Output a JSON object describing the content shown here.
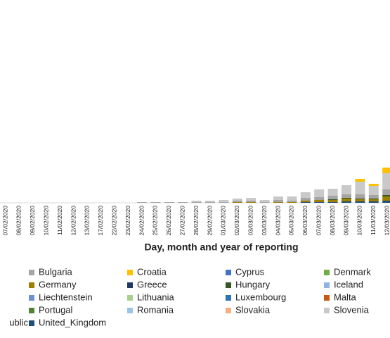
{
  "chart_data": {
    "type": "stacked_bar",
    "x_label": "Day, month and year of reporting",
    "categories": [
      "07/02/2020",
      "08/02/2020",
      "09/02/2020",
      "10/02/2020",
      "11/02/2020",
      "12/02/2020",
      "13/02/2020",
      "17/02/2020",
      "22/02/2020",
      "23/02/2020",
      "24/02/2020",
      "25/02/2020",
      "26/02/2020",
      "27/02/2020",
      "28/02/2020",
      "29/02/2020",
      "01/03/2020",
      "02/03/2020",
      "03/03/2020",
      "03/03/2020",
      "04/03/2020",
      "05/03/2020",
      "06/03/2020",
      "07/03/2020",
      "08/03/2020",
      "09/03/2020",
      "10/03/2020",
      "11/03/2020",
      "12/03/2020"
    ],
    "ylim": [
      0,
      288
    ],
    "series": [
      {
        "name": "Bulgaria",
        "color": "#a5a5a5",
        "values": [
          0,
          0,
          0,
          0,
          0,
          0,
          0,
          0,
          0,
          0,
          1,
          1,
          1,
          1,
          1,
          1,
          1,
          2,
          2,
          1,
          3,
          2,
          4,
          4,
          5,
          5,
          6,
          5,
          8
        ]
      },
      {
        "name": "Croatia",
        "color": "#ffc000",
        "values": [
          0,
          0,
          0,
          0,
          0,
          0,
          0,
          0,
          0,
          0,
          0,
          0,
          0,
          0,
          0,
          0,
          0,
          0,
          0,
          0,
          0,
          0,
          0,
          0,
          0,
          0,
          4,
          3,
          8
        ]
      },
      {
        "name": "Cyprus",
        "color": "#4472c4",
        "values": [
          0,
          0,
          0,
          0,
          0,
          0,
          0,
          0,
          0,
          0,
          0,
          0,
          0,
          0,
          0,
          0,
          0,
          0,
          0,
          0,
          0,
          0,
          0,
          0,
          0,
          0,
          0,
          0,
          0
        ]
      },
      {
        "name": "Denmark",
        "color": "#70ad47",
        "values": [
          0,
          0,
          0,
          0,
          0,
          0,
          0,
          0,
          0,
          0,
          0,
          0,
          0,
          0,
          0,
          0,
          0,
          0,
          0,
          0,
          0,
          0,
          0,
          0,
          0,
          0,
          0,
          0,
          0
        ]
      },
      {
        "name": "Germany",
        "color": "#9e7f00",
        "values": [
          0,
          0,
          0,
          0,
          0,
          0,
          0,
          0,
          0,
          0,
          0,
          0,
          0,
          0,
          0,
          0,
          0,
          1,
          1,
          0,
          1,
          1,
          2,
          3,
          3,
          4,
          3,
          3,
          6
        ]
      },
      {
        "name": "Greece",
        "color": "#203864",
        "values": [
          0,
          0,
          0,
          0,
          0,
          0,
          0,
          0,
          0,
          0,
          0,
          0,
          0,
          0,
          0,
          0,
          0,
          0,
          0,
          0,
          0,
          0,
          0,
          0,
          0,
          0,
          0,
          0,
          0
        ]
      },
      {
        "name": "Hungary",
        "color": "#375623",
        "values": [
          0,
          0,
          0,
          0,
          0,
          0,
          0,
          0,
          0,
          0,
          0,
          0,
          0,
          0,
          0,
          0,
          0,
          0,
          0,
          0,
          0,
          0,
          0,
          0,
          1,
          1,
          1,
          1,
          2
        ]
      },
      {
        "name": "Iceland",
        "color": "#8fb4e3",
        "values": [
          0,
          0,
          0,
          0,
          0,
          0,
          0,
          0,
          0,
          0,
          0,
          0,
          0,
          0,
          0,
          0,
          0,
          0,
          0,
          0,
          0,
          0,
          0,
          0,
          0,
          0,
          0,
          0,
          0
        ]
      },
      {
        "name": "Liechtenstein",
        "color": "#6f8fd4",
        "values": [
          0,
          0,
          0,
          0,
          0,
          0,
          0,
          0,
          0,
          0,
          0,
          0,
          0,
          0,
          0,
          0,
          0,
          0,
          0,
          0,
          0,
          0,
          0,
          0,
          0,
          0,
          0,
          0,
          0
        ]
      },
      {
        "name": "Lithuania",
        "color": "#a9d18e",
        "values": [
          0,
          0,
          0,
          0,
          0,
          0,
          0,
          0,
          0,
          0,
          0,
          0,
          0,
          0,
          0,
          0,
          0,
          0,
          0,
          0,
          0,
          0,
          0,
          0,
          0,
          0,
          0,
          0,
          0
        ]
      },
      {
        "name": "Luxembourg",
        "color": "#2e75b6",
        "values": [
          0,
          0,
          0,
          0,
          0,
          0,
          0,
          0,
          0,
          0,
          0,
          0,
          0,
          0,
          0,
          0,
          0,
          0,
          0,
          0,
          0,
          0,
          0,
          0,
          0,
          0,
          0,
          0,
          0
        ]
      },
      {
        "name": "Malta",
        "color": "#c55a11",
        "values": [
          0,
          0,
          0,
          0,
          0,
          0,
          0,
          0,
          0,
          0,
          0,
          0,
          0,
          0,
          0,
          0,
          0,
          0,
          0,
          0,
          0,
          0,
          0,
          0,
          0,
          0,
          0,
          0,
          0
        ]
      },
      {
        "name": "Portugal",
        "color": "#548235",
        "values": [
          0,
          0,
          0,
          0,
          0,
          0,
          0,
          0,
          0,
          0,
          0,
          0,
          0,
          0,
          0,
          0,
          0,
          0,
          0,
          0,
          0,
          0,
          0,
          0,
          0,
          0,
          0,
          0,
          0
        ]
      },
      {
        "name": "Romania",
        "color": "#9dc3e6",
        "values": [
          0,
          0,
          0,
          0,
          0,
          0,
          0,
          0,
          0,
          0,
          0,
          0,
          0,
          0,
          0,
          0,
          0,
          0,
          0,
          0,
          0,
          0,
          0,
          0,
          0,
          0,
          0,
          0,
          0
        ]
      },
      {
        "name": "Slovakia",
        "color": "#f4b183",
        "values": [
          0,
          0,
          0,
          0,
          0,
          0,
          0,
          0,
          0,
          0,
          0,
          0,
          0,
          0,
          0,
          0,
          0,
          0,
          0,
          0,
          0,
          0,
          0,
          0,
          0,
          0,
          0,
          0,
          0
        ]
      },
      {
        "name": "Slovenia",
        "color": "#c9c9c9",
        "values": [
          0,
          0,
          0,
          0,
          0,
          0,
          0,
          0,
          0,
          0,
          0,
          0,
          0,
          0,
          2,
          2,
          3,
          3,
          4,
          3,
          5,
          6,
          8,
          11,
          10,
          13,
          18,
          13,
          23
        ]
      },
      {
        "name": "ublic",
        "color": "#255e91",
        "values": [
          0,
          0,
          0,
          0,
          0,
          0,
          0,
          0,
          0,
          0,
          0,
          0,
          0,
          0,
          0,
          0,
          0,
          0,
          0,
          0,
          0,
          0,
          0,
          0,
          0,
          0,
          0,
          0,
          0
        ]
      },
      {
        "name": "United_Kingdom",
        "color": "#1f4e79",
        "values": [
          0,
          0,
          0,
          0,
          0,
          0,
          0,
          0,
          0,
          0,
          0,
          0,
          0,
          0,
          0,
          0,
          0,
          0,
          0,
          0,
          0,
          0,
          1,
          1,
          1,
          2,
          2,
          2,
          3
        ]
      }
    ]
  }
}
